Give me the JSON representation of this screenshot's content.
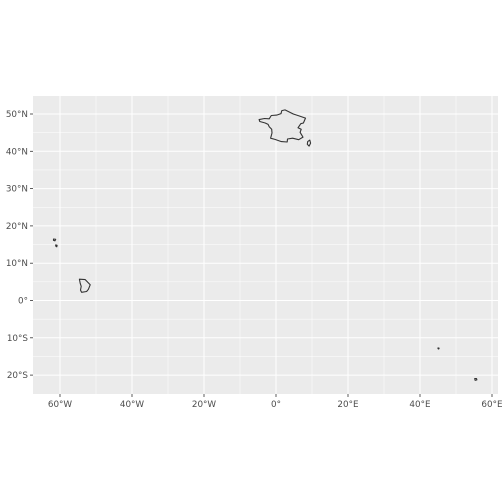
{
  "map": {
    "colors": {
      "panel_background": "#ebebeb",
      "gridline": "#ffffff",
      "land_fill": "#ebebeb",
      "land_outline": "#333333",
      "tick_text": "#4d4d4d"
    },
    "extent": {
      "lon_min": -65,
      "lon_max": 60,
      "lat_min": -25,
      "lat_max": 50
    },
    "y_ticks": [
      {
        "lat": 50,
        "label": "50°N"
      },
      {
        "lat": 40,
        "label": "40°N"
      },
      {
        "lat": 30,
        "label": "30°N"
      },
      {
        "lat": 20,
        "label": "20°N"
      },
      {
        "lat": 10,
        "label": "10°N"
      },
      {
        "lat": 0,
        "label": "0°"
      },
      {
        "lat": -10,
        "label": "10°S"
      },
      {
        "lat": -20,
        "label": "20°S"
      }
    ],
    "x_ticks": [
      {
        "lon": -60,
        "label": "60°W"
      },
      {
        "lon": -40,
        "label": "40°W"
      },
      {
        "lon": -20,
        "label": "20°W"
      },
      {
        "lon": 0,
        "label": "0°"
      },
      {
        "lon": 20,
        "label": "20°E"
      },
      {
        "lon": 40,
        "label": "40°E"
      },
      {
        "lon": 60,
        "label": "60°E"
      }
    ],
    "regions": [
      {
        "name": "metropolitan-france",
        "shape": [
          [
            -4.7,
            48.5
          ],
          [
            -4.5,
            48.0
          ],
          [
            -3,
            47.6
          ],
          [
            -2.2,
            47.2
          ],
          [
            -1.9,
            46.6
          ],
          [
            -1.2,
            45.9
          ],
          [
            -1.1,
            44.9
          ],
          [
            -1.5,
            43.5
          ],
          [
            -0.3,
            43.2
          ],
          [
            1.5,
            42.6
          ],
          [
            3.1,
            42.5
          ],
          [
            3.2,
            43.3
          ],
          [
            4.6,
            43.5
          ],
          [
            6.3,
            43.1
          ],
          [
            7.5,
            43.8
          ],
          [
            7.2,
            44.3
          ],
          [
            6.7,
            45.1
          ],
          [
            7.0,
            45.9
          ],
          [
            6.1,
            46.3
          ],
          [
            6.9,
            47.4
          ],
          [
            7.6,
            47.6
          ],
          [
            8.2,
            48.9
          ],
          [
            6.4,
            49.5
          ],
          [
            4.8,
            50.0
          ],
          [
            2.5,
            51.1
          ],
          [
            1.6,
            50.9
          ],
          [
            1.4,
            50.1
          ],
          [
            0.2,
            49.7
          ],
          [
            -1.3,
            49.6
          ],
          [
            -1.9,
            48.7
          ],
          [
            -3.2,
            48.8
          ]
        ]
      },
      {
        "name": "corsica",
        "shape": [
          [
            9.4,
            43.0
          ],
          [
            9.6,
            42.2
          ],
          [
            9.2,
            41.4
          ],
          [
            8.7,
            41.9
          ],
          [
            8.8,
            42.6
          ]
        ]
      },
      {
        "name": "guadeloupe",
        "shape": [
          [
            -61.8,
            16.5
          ],
          [
            -61.2,
            16.4
          ],
          [
            -61.4,
            16.0
          ],
          [
            -61.8,
            16.1
          ]
        ]
      },
      {
        "name": "martinique",
        "shape": [
          [
            -61.2,
            14.9
          ],
          [
            -60.8,
            14.8
          ],
          [
            -60.9,
            14.4
          ],
          [
            -61.2,
            14.6
          ]
        ]
      },
      {
        "name": "french-guiana",
        "shape": [
          [
            -54.6,
            5.7
          ],
          [
            -53.0,
            5.6
          ],
          [
            -51.6,
            4.2
          ],
          [
            -52.1,
            3.0
          ],
          [
            -52.6,
            2.4
          ],
          [
            -54.0,
            2.2
          ],
          [
            -54.3,
            2.8
          ],
          [
            -54.1,
            3.8
          ],
          [
            -54.4,
            4.6
          ]
        ]
      },
      {
        "name": "mayotte",
        "shape": [
          [
            45.0,
            -12.7
          ],
          [
            45.3,
            -12.8
          ],
          [
            45.2,
            -13.0
          ],
          [
            45.0,
            -12.9
          ]
        ]
      },
      {
        "name": "reunion",
        "shape": [
          [
            55.2,
            -20.9
          ],
          [
            55.7,
            -20.9
          ],
          [
            55.8,
            -21.3
          ],
          [
            55.3,
            -21.4
          ]
        ]
      }
    ]
  }
}
